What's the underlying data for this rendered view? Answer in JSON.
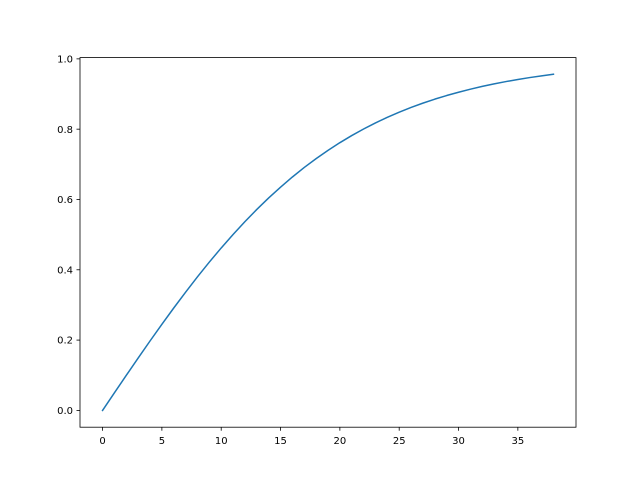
{
  "chart_data": {
    "type": "line",
    "title": "",
    "xlabel": "",
    "ylabel": "",
    "xlim": [
      -1.9,
      39.9
    ],
    "ylim": [
      -0.0478,
      1.0036
    ],
    "grid": false,
    "xticks": [
      0,
      5,
      10,
      15,
      20,
      25,
      30,
      35
    ],
    "xtick_labels": [
      "0",
      "5",
      "10",
      "15",
      "20",
      "25",
      "30",
      "35"
    ],
    "yticks": [
      0.0,
      0.2,
      0.4,
      0.6,
      0.8,
      1.0
    ],
    "ytick_labels": [
      "0.0",
      "0.2",
      "0.4",
      "0.6",
      "0.8",
      "1.0"
    ],
    "series": [
      {
        "color": "#1f77b4",
        "x": [
          0,
          1,
          2,
          3,
          4,
          5,
          6,
          7,
          8,
          9,
          10,
          11,
          12,
          13,
          14,
          15,
          16,
          17,
          18,
          19,
          20,
          21,
          22,
          23,
          24,
          25,
          26,
          27,
          28,
          29,
          30,
          31,
          32,
          33,
          34,
          35,
          36,
          37,
          38
        ],
        "y": [
          0,
          0.05,
          0.0997,
          0.1489,
          0.1974,
          0.2449,
          0.2913,
          0.3364,
          0.3799,
          0.4219,
          0.4621,
          0.5005,
          0.537,
          0.5717,
          0.6044,
          0.6351,
          0.664,
          0.6911,
          0.7163,
          0.7398,
          0.7616,
          0.7818,
          0.8005,
          0.8178,
          0.8337,
          0.8483,
          0.8617,
          0.8741,
          0.8854,
          0.8957,
          0.9051,
          0.9138,
          0.9217,
          0.9289,
          0.9354,
          0.9414,
          0.9468,
          0.9517,
          0.9562
        ]
      }
    ]
  }
}
